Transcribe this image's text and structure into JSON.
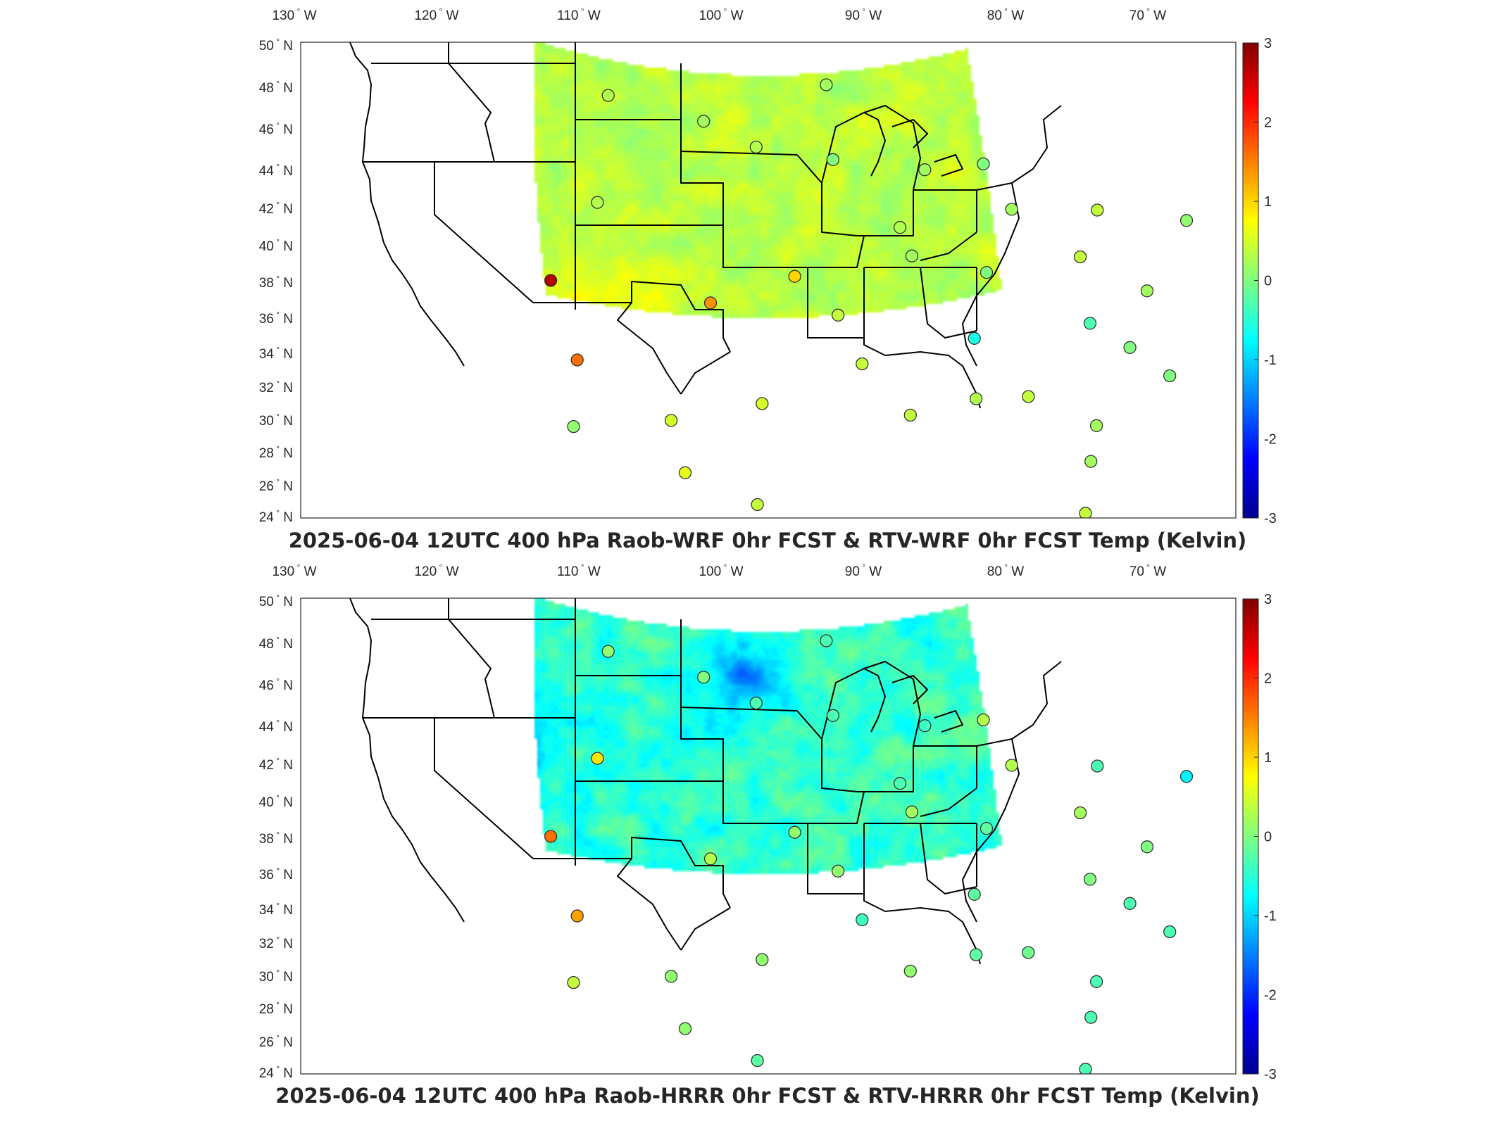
{
  "panels": [
    {
      "id": "wrf",
      "title": "2025-06-04 12UTC 400 hPa Raob-WRF 0hr FCST & RTV-WRF 0hr FCST Temp (Kelvin)",
      "field_bias": 0.35,
      "field_spread": 0.35,
      "colorbar": {
        "min": -3,
        "max": 3,
        "ticks": [
          "3",
          "2",
          "1",
          "0",
          "-1",
          "-2",
          "-3"
        ]
      },
      "stations": [
        {
          "lon": -106.6,
          "lat": 48.2,
          "value": 0.3
        },
        {
          "lon": -100.8,
          "lat": 46.8,
          "value": 0.2
        },
        {
          "lon": -93.5,
          "lat": 48.6,
          "value": 0.2
        },
        {
          "lon": -97.7,
          "lat": 45.5,
          "value": 0.3
        },
        {
          "lon": -93.3,
          "lat": 44.9,
          "value": 0.0
        },
        {
          "lon": -88.1,
          "lat": 44.5,
          "value": 0.2
        },
        {
          "lon": -84.7,
          "lat": 44.9,
          "value": 0.0
        },
        {
          "lon": -106.5,
          "lat": 42.9,
          "value": 0.3
        },
        {
          "lon": -89.8,
          "lat": 41.6,
          "value": 0.3
        },
        {
          "lon": -83.5,
          "lat": 42.7,
          "value": 0.2
        },
        {
          "lon": -78.7,
          "lat": 42.9,
          "value": 0.4
        },
        {
          "lon": -73.8,
          "lat": 42.7,
          "value": 0.1
        },
        {
          "lon": -108.5,
          "lat": 39.1,
          "value": 2.7
        },
        {
          "lon": -95.6,
          "lat": 39.1,
          "value": 1.0
        },
        {
          "lon": -100.0,
          "lat": 37.8,
          "value": 1.4
        },
        {
          "lon": -89.3,
          "lat": 40.2,
          "value": 0.2
        },
        {
          "lon": -85.4,
          "lat": 39.5,
          "value": 0.0
        },
        {
          "lon": -80.2,
          "lat": 40.5,
          "value": 0.4
        },
        {
          "lon": -77.0,
          "lat": 39.0,
          "value": 0.2
        },
        {
          "lon": -93.4,
          "lat": 37.2,
          "value": 0.4
        },
        {
          "lon": -86.5,
          "lat": 36.2,
          "value": -0.6
        },
        {
          "lon": -80.4,
          "lat": 37.2,
          "value": -0.3
        },
        {
          "lon": -78.6,
          "lat": 36.1,
          "value": 0.0
        },
        {
          "lon": -106.6,
          "lat": 35.1,
          "value": 1.6
        },
        {
          "lon": -92.3,
          "lat": 34.8,
          "value": 0.4
        },
        {
          "lon": -76.9,
          "lat": 34.8,
          "value": 0.0
        },
        {
          "lon": -84.2,
          "lat": 33.4,
          "value": 0.4
        },
        {
          "lon": -86.8,
          "lat": 33.2,
          "value": 0.3
        },
        {
          "lon": -90.1,
          "lat": 32.3,
          "value": 0.4
        },
        {
          "lon": -97.3,
          "lat": 32.8,
          "value": 0.5
        },
        {
          "lon": -101.7,
          "lat": 32.0,
          "value": 0.5
        },
        {
          "lon": -106.4,
          "lat": 31.8,
          "value": 0.1
        },
        {
          "lon": -81.1,
          "lat": 32.1,
          "value": 0.2
        },
        {
          "lon": -81.7,
          "lat": 30.3,
          "value": 0.2
        },
        {
          "lon": -100.9,
          "lat": 29.4,
          "value": 0.6
        },
        {
          "lon": -97.5,
          "lat": 27.8,
          "value": 0.4
        },
        {
          "lon": -82.4,
          "lat": 27.7,
          "value": 0.4
        }
      ]
    },
    {
      "id": "hrrr",
      "title": "2025-06-04 12UTC 400 hPa Raob-HRRR 0hr FCST & RTV-HRRR 0hr FCST Temp (Kelvin)",
      "field_bias": -0.45,
      "field_spread": 0.55,
      "colorbar": {
        "min": -3,
        "max": 3,
        "ticks": [
          "3",
          "2",
          "1",
          "0",
          "-1",
          "-2",
          "-3"
        ]
      },
      "stations": [
        {
          "lon": -106.6,
          "lat": 48.2,
          "value": 0.1
        },
        {
          "lon": -100.8,
          "lat": 46.8,
          "value": 0.0
        },
        {
          "lon": -93.5,
          "lat": 48.6,
          "value": -0.3
        },
        {
          "lon": -97.7,
          "lat": 45.5,
          "value": -0.3
        },
        {
          "lon": -93.3,
          "lat": 44.9,
          "value": -0.3
        },
        {
          "lon": -88.1,
          "lat": 44.5,
          "value": -0.4
        },
        {
          "lon": -84.7,
          "lat": 44.9,
          "value": 0.3
        },
        {
          "lon": -106.5,
          "lat": 42.9,
          "value": 0.9
        },
        {
          "lon": -89.8,
          "lat": 41.6,
          "value": -0.3
        },
        {
          "lon": -83.5,
          "lat": 42.7,
          "value": 0.3
        },
        {
          "lon": -78.7,
          "lat": 42.9,
          "value": -0.3
        },
        {
          "lon": -73.8,
          "lat": 42.7,
          "value": -0.8
        },
        {
          "lon": -108.5,
          "lat": 39.1,
          "value": 1.6
        },
        {
          "lon": -95.6,
          "lat": 39.1,
          "value": 0.1
        },
        {
          "lon": -100.0,
          "lat": 37.8,
          "value": 0.3
        },
        {
          "lon": -89.3,
          "lat": 40.2,
          "value": 0.2
        },
        {
          "lon": -85.4,
          "lat": 39.5,
          "value": -0.2
        },
        {
          "lon": -80.2,
          "lat": 40.5,
          "value": 0.2
        },
        {
          "lon": -77.0,
          "lat": 39.0,
          "value": 0.0
        },
        {
          "lon": -93.4,
          "lat": 37.2,
          "value": 0.1
        },
        {
          "lon": -86.5,
          "lat": 36.2,
          "value": -0.2
        },
        {
          "lon": -80.4,
          "lat": 37.2,
          "value": 0.0
        },
        {
          "lon": -78.6,
          "lat": 36.1,
          "value": -0.3
        },
        {
          "lon": -106.6,
          "lat": 35.1,
          "value": 1.3
        },
        {
          "lon": -92.3,
          "lat": 34.8,
          "value": -0.4
        },
        {
          "lon": -76.9,
          "lat": 34.8,
          "value": -0.3
        },
        {
          "lon": -84.2,
          "lat": 33.4,
          "value": -0.1
        },
        {
          "lon": -86.8,
          "lat": 33.2,
          "value": -0.2
        },
        {
          "lon": -90.1,
          "lat": 32.3,
          "value": 0.1
        },
        {
          "lon": -97.3,
          "lat": 32.8,
          "value": 0.1
        },
        {
          "lon": -101.7,
          "lat": 32.0,
          "value": 0.1
        },
        {
          "lon": -106.4,
          "lat": 31.8,
          "value": 0.4
        },
        {
          "lon": -81.1,
          "lat": 32.1,
          "value": -0.3
        },
        {
          "lon": -81.7,
          "lat": 30.3,
          "value": -0.3
        },
        {
          "lon": -100.9,
          "lat": 29.4,
          "value": 0.1
        },
        {
          "lon": -97.5,
          "lat": 27.8,
          "value": -0.2
        },
        {
          "lon": -82.4,
          "lat": 27.7,
          "value": -0.3
        }
      ]
    }
  ],
  "lon_labels": [
    {
      "lon": -130,
      "text": "130"
    },
    {
      "lon": -120,
      "text": "120"
    },
    {
      "lon": -110,
      "text": "110"
    },
    {
      "lon": -100,
      "text": "100"
    },
    {
      "lon": -90,
      "text": "90"
    },
    {
      "lon": -80,
      "text": "80"
    },
    {
      "lon": -70,
      "text": "70"
    }
  ],
  "lat_labels": [
    {
      "lat": 50,
      "text": "50"
    },
    {
      "lat": 48,
      "text": "48"
    },
    {
      "lat": 46,
      "text": "46"
    },
    {
      "lat": 44,
      "text": "44"
    },
    {
      "lat": 42,
      "text": "42"
    },
    {
      "lat": 40,
      "text": "40"
    },
    {
      "lat": 38,
      "text": "38"
    },
    {
      "lat": 36,
      "text": "36"
    },
    {
      "lat": 34,
      "text": "34"
    },
    {
      "lat": 32,
      "text": "32"
    },
    {
      "lat": 30,
      "text": "30"
    },
    {
      "lat": 28,
      "text": "28"
    },
    {
      "lat": 26,
      "text": "26"
    },
    {
      "lat": 24,
      "text": "24"
    }
  ],
  "lon_hemisphere": "W",
  "lat_hemisphere": "N",
  "degree_symbol": "°",
  "colormap": "jet"
}
